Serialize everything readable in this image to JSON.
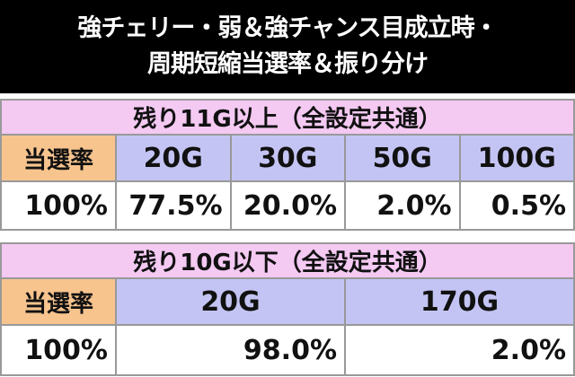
{
  "title": [
    "強チェリー・弱＆強チャンス目成立時・",
    "周期短縮当選率＆振り分け"
  ],
  "tables": [
    {
      "caption": "残り11G以上（全設定共通）",
      "row_header": "当選率",
      "columns": [
        "20G",
        "30G",
        "50G",
        "100G"
      ],
      "total": "100%",
      "values": [
        "77.5%",
        "20.0%",
        "2.0%",
        "0.5%"
      ]
    },
    {
      "caption": "残り10G以下（全設定共通）",
      "row_header": "当選率",
      "columns": [
        "20G",
        "170G"
      ],
      "total": "100%",
      "values": [
        "98.0%",
        "2.0%"
      ]
    }
  ]
}
